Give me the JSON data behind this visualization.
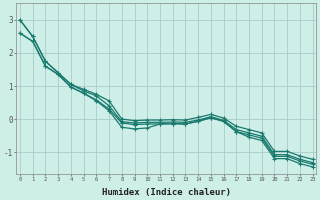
{
  "title": "",
  "xlabel": "Humidex (Indice chaleur)",
  "background_color": "#ceeee8",
  "line_color": "#1a7a6e",
  "grid_color": "#a8ccc8",
  "x_ticks": [
    0,
    1,
    2,
    3,
    4,
    5,
    6,
    7,
    8,
    9,
    10,
    11,
    12,
    13,
    14,
    15,
    16,
    17,
    18,
    19,
    20,
    21,
    22,
    23
  ],
  "y_ticks": [
    -1,
    0,
    1,
    2,
    3
  ],
  "ylim": [
    -1.65,
    3.5
  ],
  "xlim": [
    -0.3,
    23.3
  ],
  "series": [
    [
      3.0,
      2.5,
      1.75,
      1.4,
      1.05,
      0.85,
      0.7,
      0.4,
      -0.08,
      -0.12,
      -0.1,
      -0.1,
      -0.09,
      -0.1,
      -0.03,
      0.07,
      -0.04,
      -0.32,
      -0.42,
      -0.52,
      -1.08,
      -1.08,
      -1.22,
      -1.32
    ],
    [
      3.0,
      2.5,
      1.75,
      1.4,
      1.05,
      0.9,
      0.75,
      0.55,
      0.0,
      -0.05,
      -0.03,
      -0.03,
      -0.02,
      -0.03,
      0.05,
      0.14,
      0.03,
      -0.22,
      -0.32,
      -0.42,
      -0.98,
      -0.98,
      -1.12,
      -1.22
    ],
    [
      2.6,
      2.35,
      1.6,
      1.35,
      0.97,
      0.78,
      0.58,
      0.3,
      -0.12,
      -0.17,
      -0.15,
      -0.15,
      -0.14,
      -0.15,
      -0.07,
      0.04,
      -0.07,
      -0.38,
      -0.48,
      -0.58,
      -1.13,
      -1.13,
      -1.27,
      -1.37
    ],
    [
      2.6,
      2.35,
      1.6,
      1.35,
      0.97,
      0.78,
      0.55,
      0.25,
      -0.25,
      -0.3,
      -0.27,
      -0.15,
      -0.14,
      -0.15,
      -0.07,
      0.04,
      -0.07,
      -0.38,
      -0.55,
      -0.65,
      -1.2,
      -1.2,
      -1.35,
      -1.45
    ]
  ]
}
